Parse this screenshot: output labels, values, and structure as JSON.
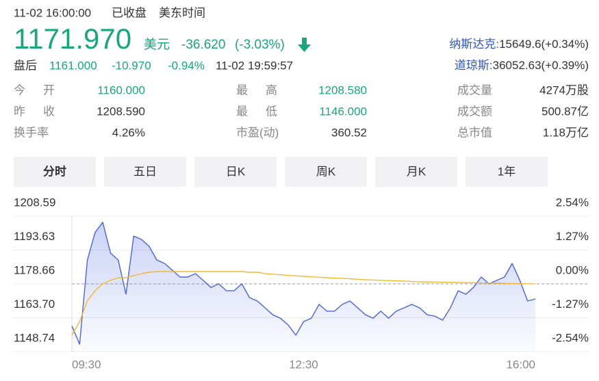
{
  "header": {
    "datetime": "11-02 16:00:00",
    "status": "已收盘",
    "timezone": "美东时间",
    "price": "1171.970",
    "currency": "美元",
    "change": "-36.620",
    "change_pct": "(-3.03%)"
  },
  "after_hours": {
    "label": "盘后",
    "price": "1161.000",
    "change": "-10.970",
    "change_pct": "-0.94%",
    "time": "11-02 19:59:57"
  },
  "indices": [
    {
      "name": "纳斯达克:",
      "value": "15649.6(+0.34%)"
    },
    {
      "name": "道琼斯:",
      "value": "36052.63(+0.39%)"
    }
  ],
  "stats": [
    [
      {
        "label": "今开",
        "value": "1160.000",
        "green": true
      },
      {
        "label": "最高",
        "value": "1208.580",
        "green": true
      },
      {
        "label": "成交量",
        "value": "4274万股"
      }
    ],
    [
      {
        "label": "昨收",
        "value": "1208.590"
      },
      {
        "label": "最低",
        "value": "1146.000",
        "green": true
      },
      {
        "label": "成交额",
        "value": "500.87亿"
      }
    ],
    [
      {
        "label": "换手率",
        "value": "4.26%"
      },
      {
        "label": "市盈(动)",
        "value": "360.52"
      },
      {
        "label": "总市值",
        "value": "1.18万亿"
      }
    ]
  ],
  "tabs": [
    "分时",
    "五日",
    "日K",
    "周K",
    "月K",
    "1年"
  ],
  "active_tab": 0,
  "chart_data": {
    "type": "line",
    "categories": [
      "09:30",
      null,
      null,
      null,
      null,
      null,
      null,
      null,
      null,
      null,
      null,
      null,
      null,
      null,
      null,
      null,
      null,
      null,
      null,
      null,
      null,
      null,
      null,
      null,
      null,
      null,
      null,
      null,
      null,
      null,
      "12:30",
      null,
      null,
      null,
      null,
      null,
      null,
      null,
      null,
      null,
      null,
      null,
      null,
      null,
      null,
      null,
      null,
      null,
      null,
      null,
      null,
      null,
      null,
      null,
      null,
      null,
      null,
      null,
      null,
      null,
      "16:00"
    ],
    "series": [
      {
        "color": "#4a63d8",
        "area": true,
        "values": [
          1160.0,
          1152.0,
          1189.2,
          1201.3,
          1205.9,
          1192.3,
          1189.2,
          1174.1,
          1199.8,
          1198.3,
          1195.3,
          1189.2,
          1187.7,
          1184.7,
          1181.7,
          1181.7,
          1183.2,
          1180.2,
          1177.1,
          1178.7,
          1175.6,
          1175.6,
          1178.7,
          1172.6,
          1171.1,
          1168.1,
          1165.0,
          1163.5,
          1160.5,
          1156.0,
          1162.0,
          1163.5,
          1169.6,
          1166.6,
          1166.6,
          1169.6,
          1171.1,
          1168.1,
          1165.0,
          1163.5,
          1166.6,
          1163.5,
          1166.6,
          1168.1,
          1169.6,
          1168.1,
          1165.0,
          1164.4,
          1162.6,
          1168.1,
          1175.6,
          1174.1,
          1177.1,
          1181.7,
          1178.7,
          1180.2,
          1181.7,
          1187.7,
          1180.2,
          1171.1,
          1172.0
        ]
      },
      {
        "color": "#f4b731",
        "values": [
          1156.0,
          1162.0,
          1171.1,
          1175.6,
          1178.7,
          1180.2,
          1181.4,
          1181.4,
          1182.3,
          1183.2,
          1183.8,
          1184.1,
          1184.1,
          1184.1,
          1184.1,
          1184.1,
          1184.1,
          1184.1,
          1184.1,
          1184.1,
          1184.1,
          1184.1,
          1184.1,
          1183.8,
          1183.8,
          1183.2,
          1183.0,
          1182.7,
          1182.4,
          1182.2,
          1182.0,
          1181.8,
          1181.6,
          1181.4,
          1181.2,
          1181.1,
          1180.9,
          1180.7,
          1180.5,
          1180.4,
          1180.2,
          1180.1,
          1180.0,
          1179.9,
          1179.7,
          1179.6,
          1179.5,
          1179.5,
          1179.4,
          1179.4,
          1179.3,
          1179.2,
          1179.2,
          1179.1,
          1179.0,
          1179.0,
          1178.9,
          1178.8,
          1178.8,
          1178.7,
          1178.7
        ]
      }
    ],
    "ylim": [
      1148.74,
      1208.59
    ],
    "yticks": [
      1208.59,
      1193.63,
      1178.66,
      {
        "value": 1163.7,
        "label": "1163.70"
      },
      1148.74
    ],
    "y2lim": [
      -2.54,
      2.54
    ],
    "y2ticks": [
      {
        "value": 2.54,
        "label": "2.54%"
      },
      {
        "value": 1.27,
        "label": "1.27%"
      },
      {
        "value": 0,
        "label": "0.00%"
      },
      {
        "value": -1.27,
        "label": "-1.27%"
      },
      {
        "value": -2.54,
        "label": "-2.54%"
      }
    ],
    "grid": true
  }
}
